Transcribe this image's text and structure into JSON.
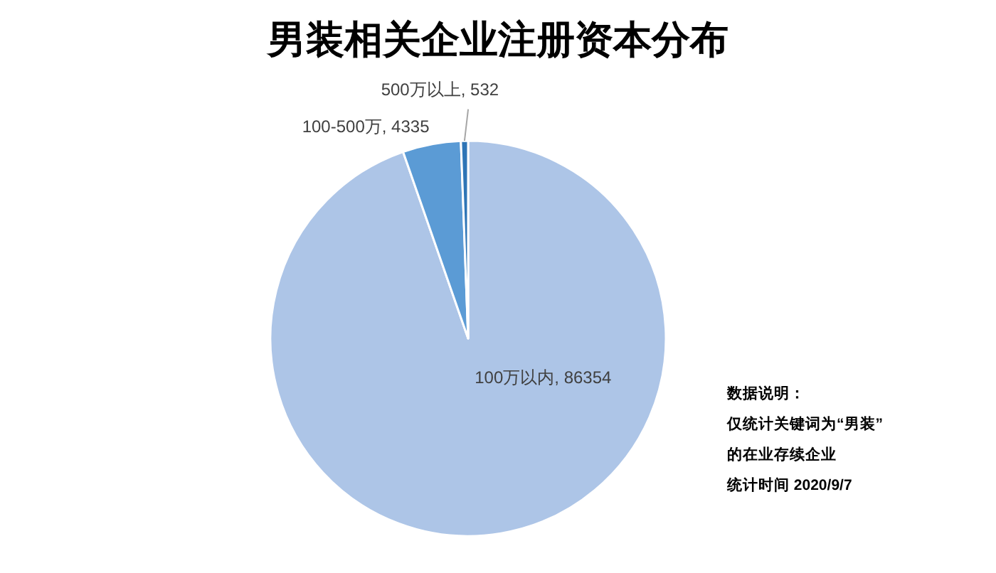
{
  "chart_data": {
    "type": "pie",
    "title": "男装相关企业注册资本分布",
    "categories": [
      "100万以内",
      "100-500万",
      "500万以上"
    ],
    "values": [
      86354,
      4335,
      532
    ],
    "value_labels": [
      ", 86354",
      ", 4335",
      ", 532"
    ],
    "colors": [
      "#adc5e7",
      "#5b9bd5",
      "#2e75b6"
    ],
    "annotations": [
      "数据说明：",
      "仅统计关键词为“男装”",
      "的在业存续企业",
      "统计时间 2020/9/7"
    ]
  }
}
